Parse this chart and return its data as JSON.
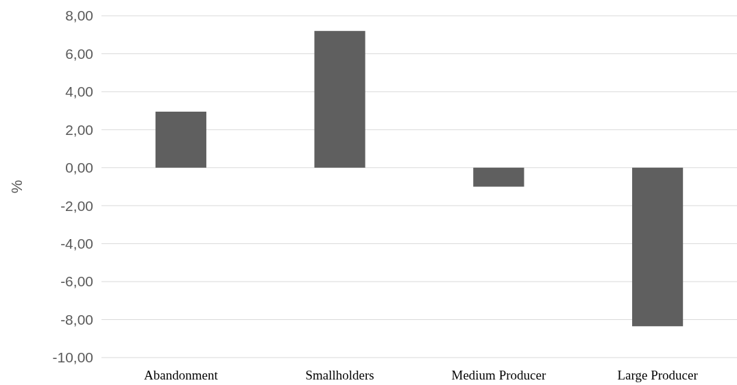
{
  "chart_data": {
    "type": "bar",
    "ylabel": "%",
    "categories": [
      "Abandonment",
      "Smallholders",
      "Medium Producer",
      "Large Producer"
    ],
    "values": [
      2.95,
      7.2,
      -1.0,
      -8.35
    ],
    "color": "#5f5f5f",
    "ylim": [
      -10,
      8
    ],
    "yticks": [
      {
        "value": -10,
        "label": "-10,00"
      },
      {
        "value": -8,
        "label": "-8,00"
      },
      {
        "value": -6,
        "label": "-6,00"
      },
      {
        "value": -4,
        "label": "-4,00"
      },
      {
        "value": -2,
        "label": "-2,00"
      },
      {
        "value": 0,
        "label": "0,00"
      },
      {
        "value": 2,
        "label": "2,00"
      },
      {
        "value": 4,
        "label": "4,00"
      },
      {
        "value": 6,
        "label": "6,00"
      },
      {
        "value": 8,
        "label": "8,00"
      }
    ],
    "grid": "y"
  }
}
